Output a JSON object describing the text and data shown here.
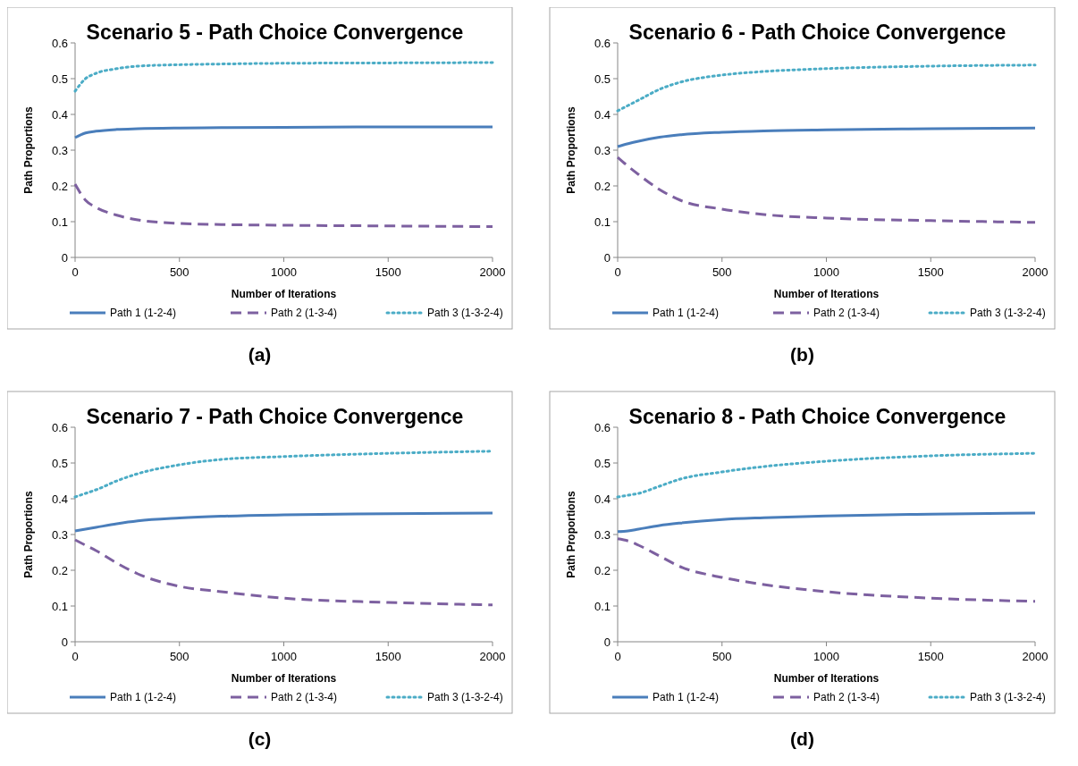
{
  "chart_data": [
    {
      "type": "line",
      "title": "Scenario 5 - Path Choice Convergence",
      "xlabel": "Number of Iterations",
      "ylabel": "Path Proportions",
      "annotations": [
        "(a)"
      ],
      "x": [
        0,
        50,
        100,
        200,
        300,
        500,
        700,
        1000,
        1500,
        2000
      ],
      "xlim": [
        0,
        2000
      ],
      "xticks": [
        0,
        500,
        1000,
        1500,
        2000
      ],
      "ylim": [
        0,
        0.6
      ],
      "yticks": [
        0,
        0.1,
        0.2,
        0.3,
        0.4,
        0.5,
        0.6
      ],
      "grid": false,
      "legend": "bottom",
      "marker": "none",
      "series": [
        {
          "name": "Path 1 (1-2-4)",
          "color": "#4a7ebb",
          "line_style": "solid",
          "values": [
            0.335,
            0.348,
            0.353,
            0.358,
            0.36,
            0.362,
            0.363,
            0.364,
            0.365,
            0.365
          ]
        },
        {
          "name": "Path 2 (1-3-4)",
          "color": "#7d60a0",
          "line_style": "dashed",
          "values": [
            0.205,
            0.16,
            0.14,
            0.118,
            0.105,
            0.095,
            0.092,
            0.09,
            0.088,
            0.086
          ]
        },
        {
          "name": "Path 3 (1-3-2-4)",
          "color": "#4bacc6",
          "line_style": "dotted",
          "values": [
            0.465,
            0.5,
            0.515,
            0.528,
            0.535,
            0.539,
            0.541,
            0.543,
            0.544,
            0.545
          ]
        }
      ]
    },
    {
      "type": "line",
      "title": "Scenario 6 - Path Choice Convergence",
      "xlabel": "Number of Iterations",
      "ylabel": "Path Proportions",
      "annotations": [
        "(b)"
      ],
      "x": [
        0,
        50,
        100,
        200,
        300,
        500,
        700,
        1000,
        1500,
        2000
      ],
      "xlim": [
        0,
        2000
      ],
      "xticks": [
        0,
        500,
        1000,
        1500,
        2000
      ],
      "ylim": [
        0,
        0.6
      ],
      "yticks": [
        0,
        0.1,
        0.2,
        0.3,
        0.4,
        0.5,
        0.6
      ],
      "grid": false,
      "legend": "bottom",
      "marker": "none",
      "series": [
        {
          "name": "Path 1 (1-2-4)",
          "color": "#4a7ebb",
          "line_style": "solid",
          "values": [
            0.31,
            0.318,
            0.325,
            0.336,
            0.343,
            0.35,
            0.354,
            0.357,
            0.36,
            0.362
          ]
        },
        {
          "name": "Path 2 (1-3-4)",
          "color": "#7d60a0",
          "line_style": "dashed",
          "values": [
            0.28,
            0.255,
            0.232,
            0.19,
            0.16,
            0.135,
            0.12,
            0.11,
            0.103,
            0.098
          ]
        },
        {
          "name": "Path 3 (1-3-2-4)",
          "color": "#4bacc6",
          "line_style": "dotted",
          "values": [
            0.41,
            0.425,
            0.44,
            0.47,
            0.49,
            0.51,
            0.52,
            0.528,
            0.535,
            0.538
          ]
        }
      ]
    },
    {
      "type": "line",
      "title": "Scenario 7 - Path Choice Convergence",
      "xlabel": "Number of Iterations",
      "ylabel": "Path Proportions",
      "annotations": [
        "(c)"
      ],
      "x": [
        0,
        50,
        100,
        200,
        300,
        500,
        700,
        1000,
        1500,
        2000
      ],
      "xlim": [
        0,
        2000
      ],
      "xticks": [
        0,
        500,
        1000,
        1500,
        2000
      ],
      "ylim": [
        0,
        0.6
      ],
      "yticks": [
        0,
        0.1,
        0.2,
        0.3,
        0.4,
        0.5,
        0.6
      ],
      "grid": false,
      "legend": "bottom",
      "marker": "none",
      "series": [
        {
          "name": "Path 1 (1-2-4)",
          "color": "#4a7ebb",
          "line_style": "solid",
          "values": [
            0.31,
            0.315,
            0.32,
            0.33,
            0.338,
            0.346,
            0.351,
            0.355,
            0.358,
            0.36
          ]
        },
        {
          "name": "Path 2 (1-3-4)",
          "color": "#7d60a0",
          "line_style": "dashed",
          "values": [
            0.285,
            0.27,
            0.255,
            0.22,
            0.19,
            0.155,
            0.14,
            0.122,
            0.11,
            0.103
          ]
        },
        {
          "name": "Path 3 (1-3-2-4)",
          "color": "#4bacc6",
          "line_style": "dotted",
          "values": [
            0.405,
            0.415,
            0.425,
            0.45,
            0.47,
            0.495,
            0.51,
            0.518,
            0.527,
            0.533
          ]
        }
      ]
    },
    {
      "type": "line",
      "title": "Scenario 8 - Path Choice Convergence",
      "xlabel": "Number of Iterations",
      "ylabel": "Path Proportions",
      "annotations": [
        "(d)"
      ],
      "x": [
        0,
        50,
        100,
        200,
        300,
        500,
        700,
        1000,
        1500,
        2000
      ],
      "xlim": [
        0,
        2000
      ],
      "xticks": [
        0,
        500,
        1000,
        1500,
        2000
      ],
      "ylim": [
        0,
        0.6
      ],
      "yticks": [
        0,
        0.1,
        0.2,
        0.3,
        0.4,
        0.5,
        0.6
      ],
      "grid": false,
      "legend": "bottom",
      "marker": "none",
      "series": [
        {
          "name": "Path 1 (1-2-4)",
          "color": "#4a7ebb",
          "line_style": "solid",
          "values": [
            0.308,
            0.31,
            0.315,
            0.325,
            0.332,
            0.342,
            0.347,
            0.352,
            0.357,
            0.36
          ]
        },
        {
          "name": "Path 2 (1-3-4)",
          "color": "#7d60a0",
          "line_style": "dashed",
          "values": [
            0.288,
            0.282,
            0.27,
            0.24,
            0.21,
            0.18,
            0.16,
            0.14,
            0.122,
            0.113
          ]
        },
        {
          "name": "Path 3 (1-3-2-4)",
          "color": "#4bacc6",
          "line_style": "dotted",
          "values": [
            0.405,
            0.41,
            0.415,
            0.435,
            0.455,
            0.475,
            0.49,
            0.505,
            0.52,
            0.527
          ]
        }
      ]
    }
  ]
}
